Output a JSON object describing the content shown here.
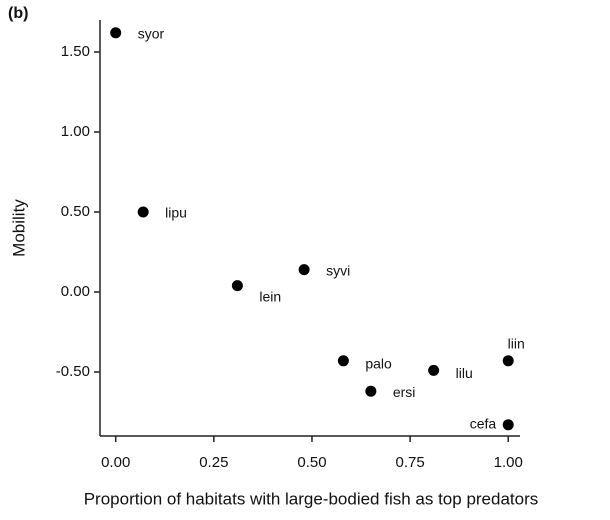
{
  "chart_data": {
    "type": "scatter",
    "panel_label": "(b)",
    "x_label": "Proportion of habitats with large-bodied fish as top predators",
    "y_label": "Mobility",
    "labels": [
      "syor",
      "lipu",
      "lein",
      "syvi",
      "palo",
      "ersi",
      "lilu",
      "liin",
      "cefa"
    ],
    "x": [
      0.0,
      0.07,
      0.31,
      0.48,
      0.58,
      0.65,
      0.81,
      1.0,
      1.0
    ],
    "values": [
      1.62,
      0.5,
      0.04,
      0.14,
      -0.43,
      -0.62,
      -0.49,
      -0.43,
      -0.83
    ],
    "color": "#000000",
    "xlim": [
      -0.04,
      1.03
    ],
    "ylim": [
      -0.9,
      1.7
    ],
    "xticks": [
      {
        "value": 0,
        "label": "0.00"
      },
      {
        "value": 0.25,
        "label": "0.25"
      },
      {
        "value": 0.5,
        "label": "0.50"
      },
      {
        "value": 0.75,
        "label": "0.75"
      },
      {
        "value": 1,
        "label": "1.00"
      }
    ],
    "yticks": [
      {
        "value": -0.5,
        "label": "-0.50"
      },
      {
        "value": 0,
        "label": "0.00"
      },
      {
        "value": 0.5,
        "label": "0.50"
      },
      {
        "value": 1,
        "label": "1.00"
      },
      {
        "value": 1.5,
        "label": "1.50"
      }
    ]
  }
}
